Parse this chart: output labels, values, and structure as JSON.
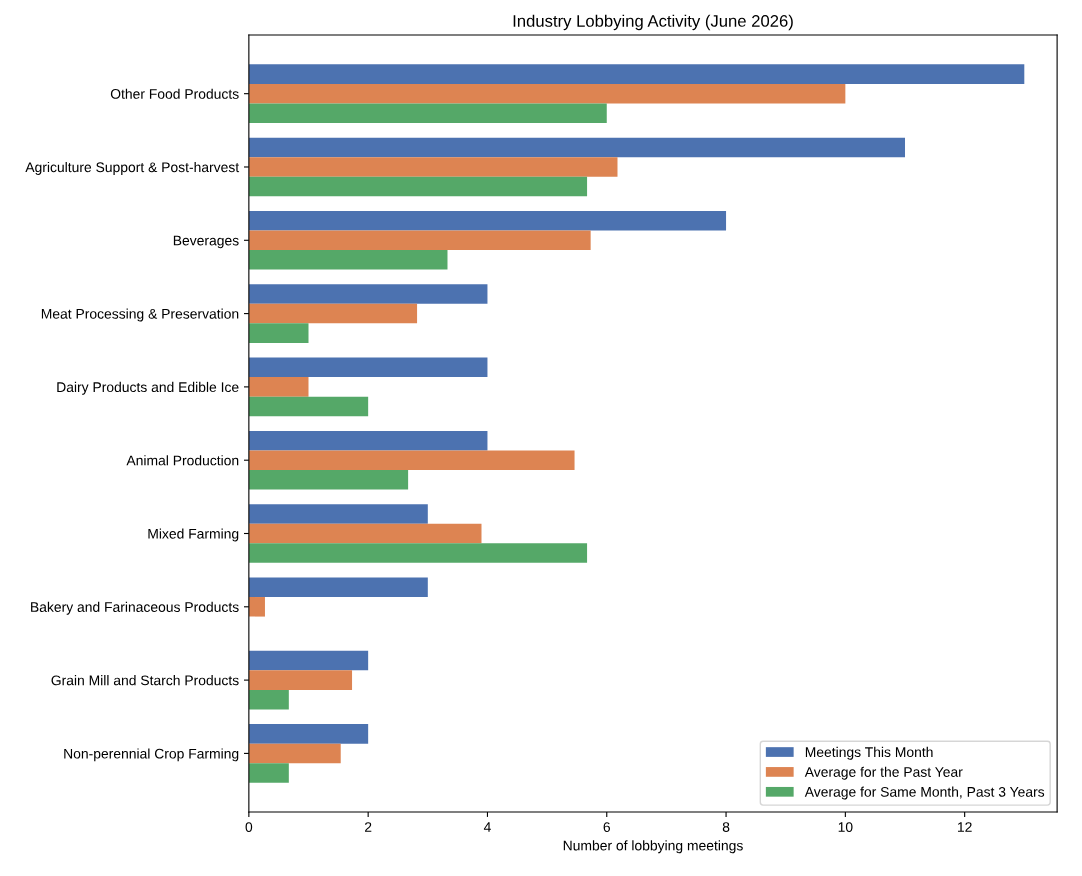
{
  "chart_data": {
    "type": "bar",
    "orientation": "horizontal",
    "title": "Industry Lobbying Activity (June 2026)",
    "xlabel": "Number of lobbying meetings",
    "categories": [
      "Other Food Products",
      "Agriculture Support & Post-harvest",
      "Beverages",
      "Meat Processing & Preservation",
      "Dairy Products and Edible Ice",
      "Animal Production",
      "Mixed Farming",
      "Bakery and Farinaceous Products",
      "Grain Mill and Starch Products",
      "Non-perennial Crop Farming"
    ],
    "series": [
      {
        "name": "Meetings This Month",
        "color": "#4c72b0",
        "values": [
          13,
          11,
          8,
          4,
          4,
          4,
          3,
          3,
          2,
          2
        ]
      },
      {
        "name": "Average for the Past Year",
        "color": "#dd8452",
        "values": [
          10.0,
          6.18,
          5.73,
          2.82,
          1.0,
          5.46,
          3.9,
          0.27,
          1.73,
          1.54
        ]
      },
      {
        "name": "Average for Same Month, Past 3 Years",
        "color": "#55a868",
        "values": [
          6.0,
          5.67,
          3.33,
          1.0,
          2.0,
          2.67,
          5.67,
          0.0,
          0.67,
          0.67
        ]
      }
    ],
    "xlim": [
      0,
      13.55
    ],
    "xticks": [
      0,
      2,
      4,
      6,
      8,
      10,
      12
    ],
    "grid": false,
    "legend": "bottom right"
  }
}
